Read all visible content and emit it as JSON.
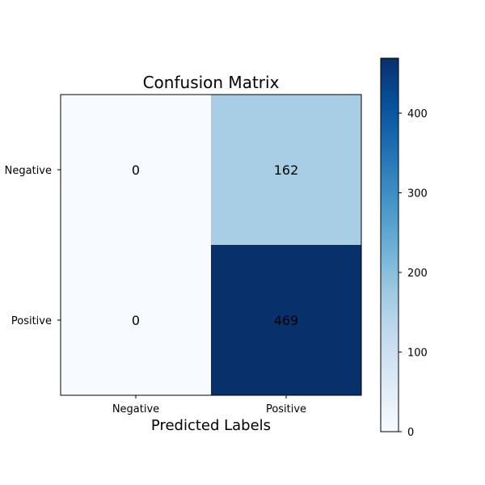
{
  "chart_data": {
    "type": "heatmap",
    "title": "Confusion Matrix",
    "xlabel": "Predicted Labels",
    "ylabel": "",
    "x_categories": [
      "Negative",
      "Positive"
    ],
    "y_categories": [
      "Negative",
      "Positive"
    ],
    "values": [
      [
        0,
        162
      ],
      [
        0,
        469
      ]
    ],
    "colormap": "Blues",
    "colorbar": {
      "min": 0,
      "max": 469,
      "ticks": [
        0,
        100,
        200,
        300,
        400
      ],
      "tick_labels": [
        "0",
        "100",
        "200",
        "300",
        "400"
      ]
    },
    "grid": false,
    "legend": "colorbar-right"
  }
}
